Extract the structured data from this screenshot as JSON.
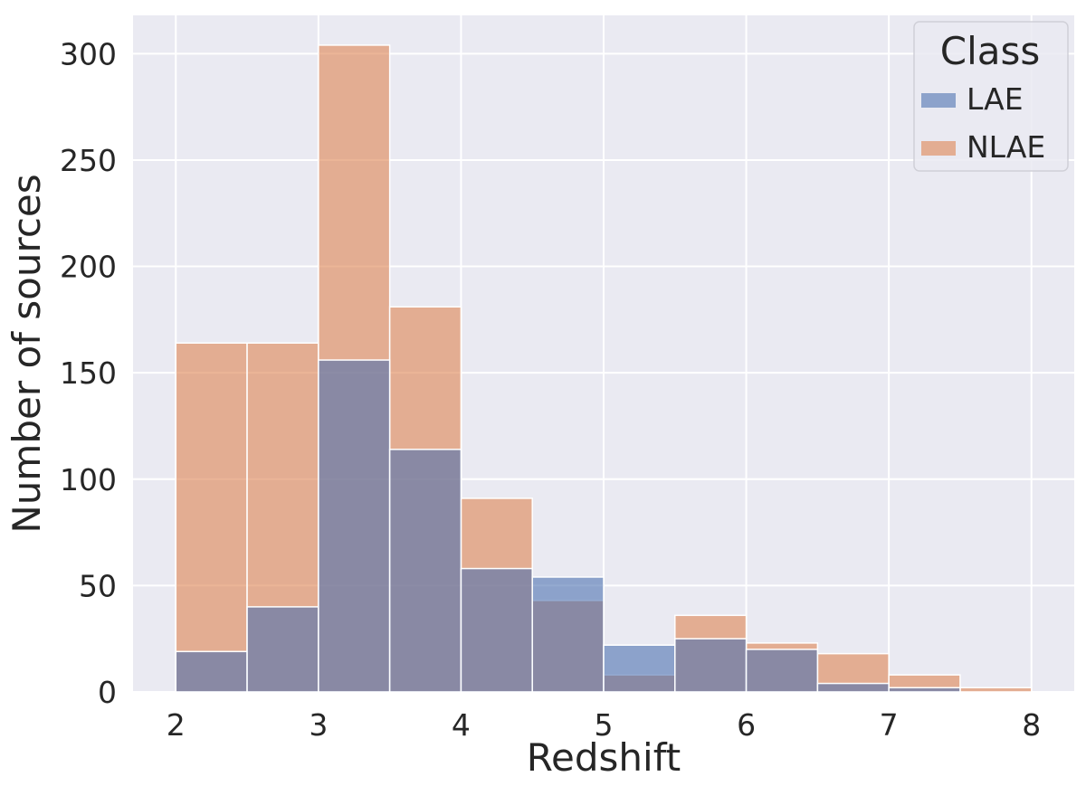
{
  "chart_data": {
    "type": "bar",
    "subtype": "overlaid-histogram",
    "xlabel": "Redshift",
    "ylabel": "Number of sources",
    "xlim": [
      1.7,
      8.3
    ],
    "ylim": [
      0,
      318
    ],
    "xticks": [
      2,
      3,
      4,
      5,
      6,
      7,
      8
    ],
    "yticks": [
      0,
      50,
      100,
      150,
      200,
      250,
      300
    ],
    "grid": true,
    "background": "#eaeaf2",
    "legend": {
      "title": "Class",
      "placement": "top-right"
    },
    "bin_edges": [
      2.0,
      2.5,
      3.0,
      3.5,
      4.0,
      4.5,
      5.0,
      5.5,
      6.0,
      6.5,
      7.0,
      7.5,
      8.0
    ],
    "series": [
      {
        "name": "LAE",
        "color": "#4c72b0",
        "values": [
          19,
          40,
          156,
          114,
          58,
          54,
          22,
          25,
          20,
          4,
          2,
          0
        ]
      },
      {
        "name": "NLAE",
        "color": "#dd8452",
        "values": [
          164,
          164,
          304,
          181,
          91,
          43,
          8,
          36,
          23,
          18,
          8,
          2
        ]
      }
    ]
  }
}
